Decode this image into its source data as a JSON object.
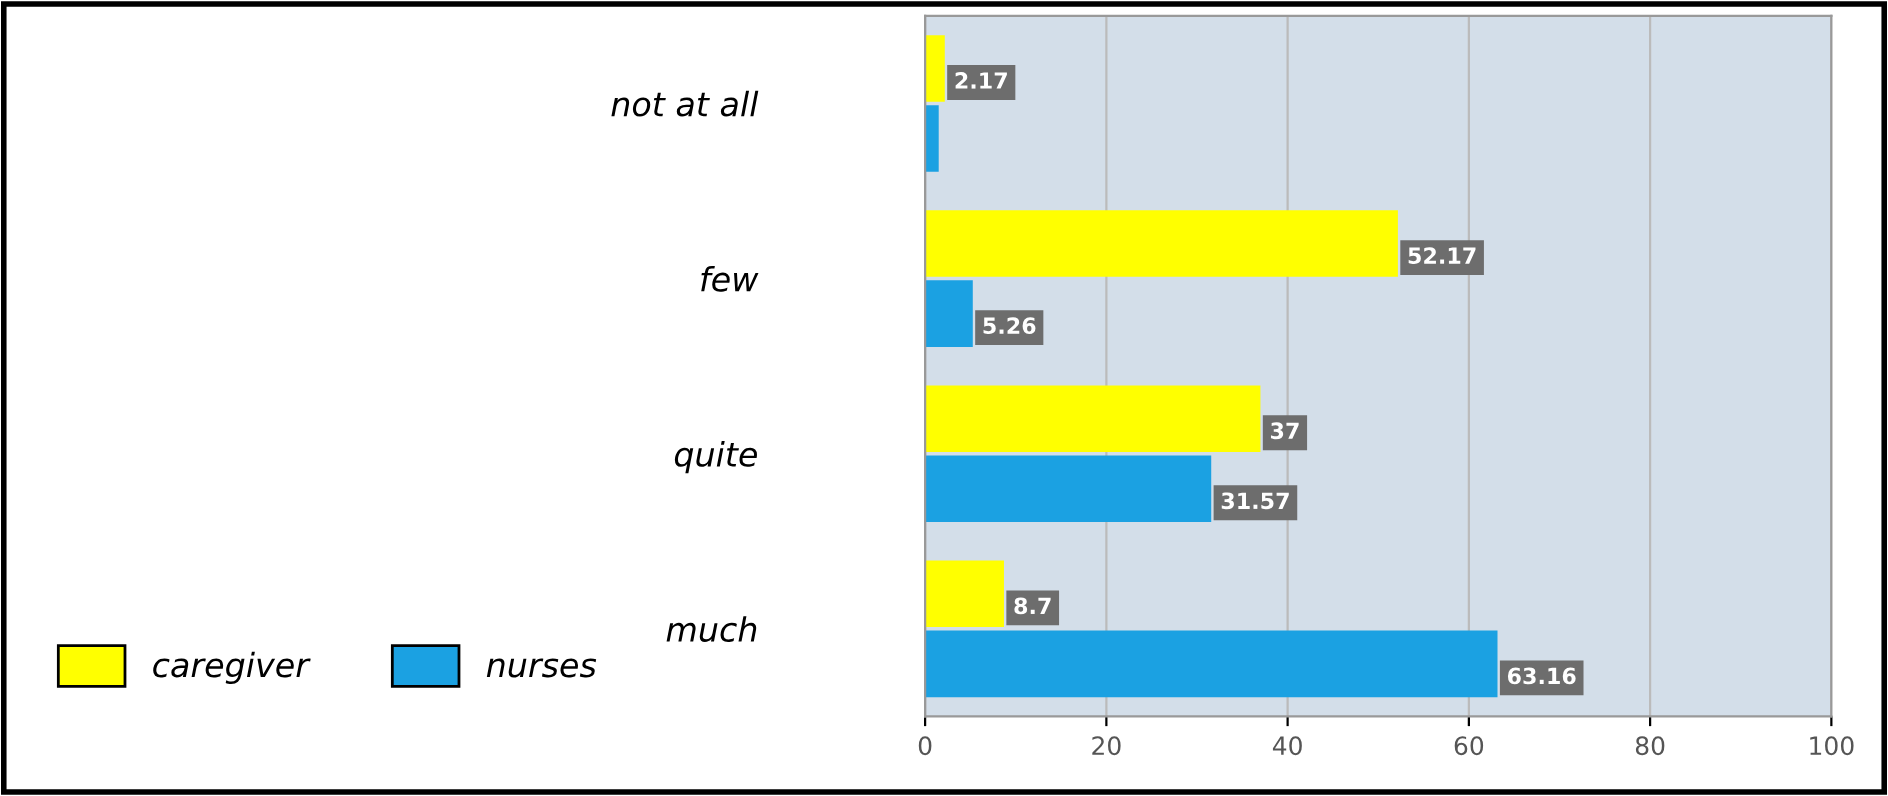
{
  "chart_data": {
    "type": "bar",
    "orientation": "horizontal",
    "categories": [
      "not at all",
      "few",
      "quite",
      "much"
    ],
    "series": [
      {
        "name": "caregiver",
        "color": "#ffff00",
        "values": [
          2.17,
          52.17,
          37,
          8.7
        ],
        "value_labels": [
          "2.17",
          "52.17",
          "37",
          "8.7"
        ]
      },
      {
        "name": "nurses",
        "color": "#1ba1e2",
        "values": [
          1.5,
          5.26,
          31.57,
          63.16
        ],
        "value_labels": [
          null,
          "5.26",
          "31.57",
          "63.16"
        ]
      }
    ],
    "xlim": [
      0,
      100
    ],
    "xticks": [
      0,
      20,
      40,
      60,
      80,
      100
    ],
    "grid": "x",
    "legend": "bottom left"
  }
}
